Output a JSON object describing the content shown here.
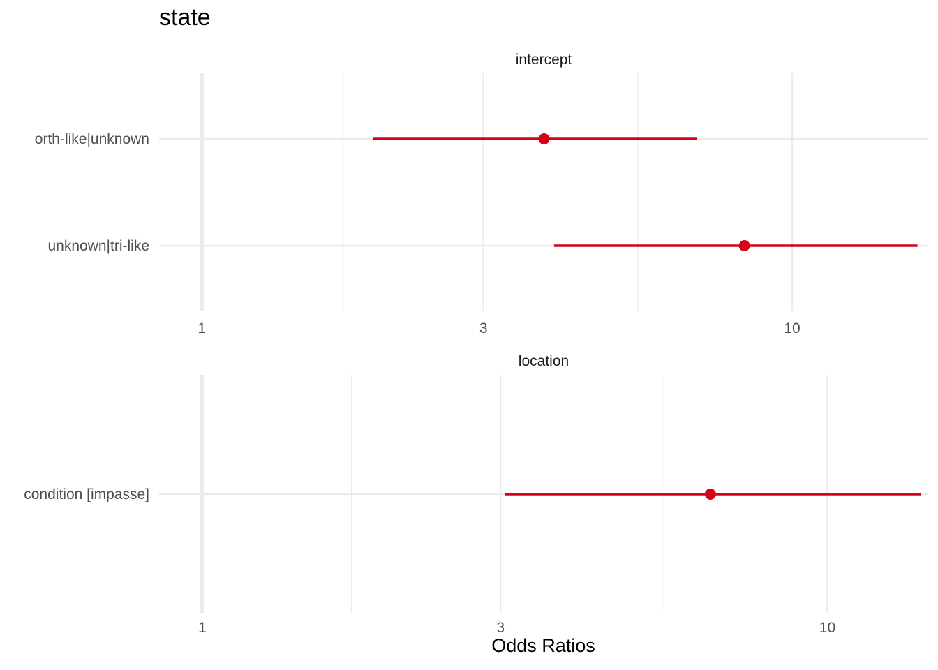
{
  "chart_data": {
    "type": "forest",
    "title": "state",
    "xlabel": "Odds Ratios",
    "x_scale": "log",
    "colors": {
      "estimate": "#d7001a",
      "grid": "#ebebeb",
      "strip_text": "#1a1a1a",
      "tick_text": "#4d4d4d"
    },
    "facets": [
      {
        "name": "intercept",
        "xlim": [
          0.97,
          17
        ],
        "x_ticks": [
          1,
          3,
          10
        ],
        "x_tick_labels": [
          "1",
          "3",
          "10"
        ],
        "terms": [
          {
            "label": "orth-like|unknown",
            "estimate": 3.8,
            "ci_low": 1.95,
            "ci_high": 6.9
          },
          {
            "label": "unknown|tri-like",
            "estimate": 8.3,
            "ci_low": 3.95,
            "ci_high": 16.3
          }
        ]
      },
      {
        "name": "location",
        "xlim": [
          0.97,
          14.5
        ],
        "x_ticks": [
          1,
          3,
          10
        ],
        "x_tick_labels": [
          "1",
          "3",
          "10"
        ],
        "terms": [
          {
            "label": "condition [impasse]",
            "estimate": 6.5,
            "ci_low": 3.05,
            "ci_high": 14.1
          }
        ]
      }
    ]
  }
}
